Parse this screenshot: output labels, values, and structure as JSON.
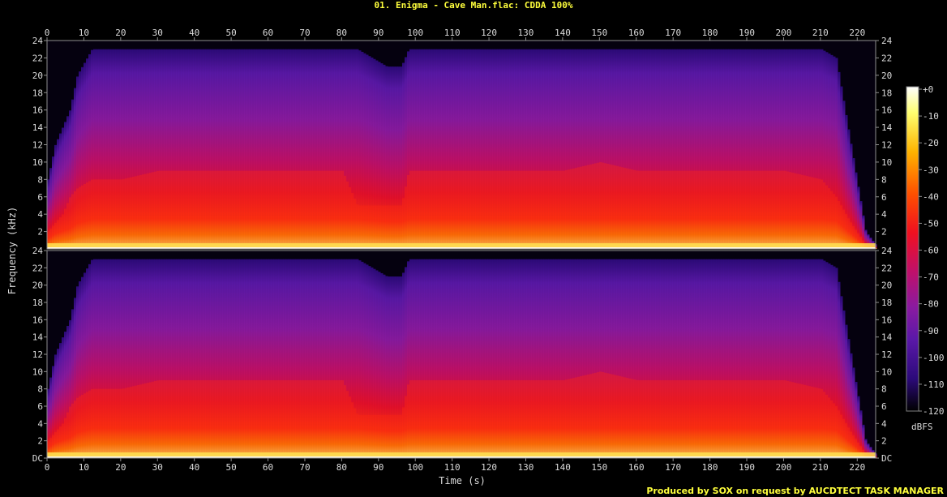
{
  "chart_data": {
    "type": "heatmap",
    "title": "01. Enigma - Cave Man.flac: CDDA 100%",
    "xlabel": "Time (s)",
    "ylabel": "Frequency (kHz)",
    "xlim": [
      0,
      225
    ],
    "ylim_khz": [
      0,
      24
    ],
    "x_ticks": [
      "0",
      "10",
      "20",
      "30",
      "40",
      "50",
      "60",
      "70",
      "80",
      "90",
      "100",
      "110",
      "120",
      "130",
      "140",
      "150",
      "160",
      "170",
      "180",
      "190",
      "200",
      "210",
      "220"
    ],
    "channels": [
      {
        "name": "upper",
        "y_ticks_left": [
          "24",
          "22",
          "20",
          "18",
          "16",
          "14",
          "12",
          "10",
          "8",
          "6",
          "4",
          "2"
        ],
        "y_ticks_right": [
          "24",
          "22",
          "20",
          "18",
          "16",
          "14",
          "12",
          "10",
          "8",
          "6",
          "4",
          "2"
        ]
      },
      {
        "name": "lower",
        "y_ticks_left": [
          "24",
          "22",
          "20",
          "18",
          "16",
          "14",
          "12",
          "10",
          "8",
          "6",
          "4",
          "2",
          "DC"
        ],
        "y_ticks_right": [
          "24",
          "22",
          "20",
          "18",
          "16",
          "14",
          "12",
          "10",
          "8",
          "6",
          "4",
          "2",
          "DC"
        ]
      }
    ],
    "colorbar": {
      "unit": "dBFS",
      "range": [
        -120,
        0
      ],
      "ticks": [
        "+0",
        "-10",
        "-20",
        "-30",
        "-40",
        "-50",
        "-60",
        "-70",
        "-80",
        "-90",
        "-100",
        "-110",
        "-120"
      ],
      "colors": [
        "#ffffff",
        "#ffff70",
        "#ffb400",
        "#ff5000",
        "#f01020",
        "#c0106a",
        "#8a1aa0",
        "#5a18a8",
        "#2c0a7a",
        "#000000"
      ]
    },
    "energy_profile": {
      "time_s": [
        0,
        2,
        4,
        6,
        8,
        12,
        20,
        30,
        40,
        50,
        60,
        70,
        80,
        84,
        88,
        92,
        96,
        98,
        100,
        110,
        120,
        130,
        140,
        150,
        160,
        170,
        180,
        190,
        200,
        210,
        214,
        218,
        222,
        225
      ],
      "cutoff_khz": [
        8,
        12,
        14,
        16,
        20,
        23,
        23,
        23,
        23,
        23,
        23,
        23,
        23,
        23,
        22,
        21,
        21,
        23,
        23,
        23,
        23,
        23,
        23,
        23,
        23,
        23,
        23,
        23,
        23,
        23,
        22,
        12,
        2,
        0.3
      ],
      "strong_band_khz": [
        2,
        3,
        4,
        6,
        7,
        8,
        8,
        9,
        9,
        9,
        9,
        9,
        9,
        5,
        5,
        5,
        5,
        9,
        9,
        9,
        9,
        9,
        9,
        10,
        9,
        9,
        9,
        9,
        9,
        8,
        6,
        3,
        0.5,
        0
      ]
    }
  },
  "footer": {
    "credit": "Produced by SOX on request by AUCDTECT TASK MANAGER"
  }
}
